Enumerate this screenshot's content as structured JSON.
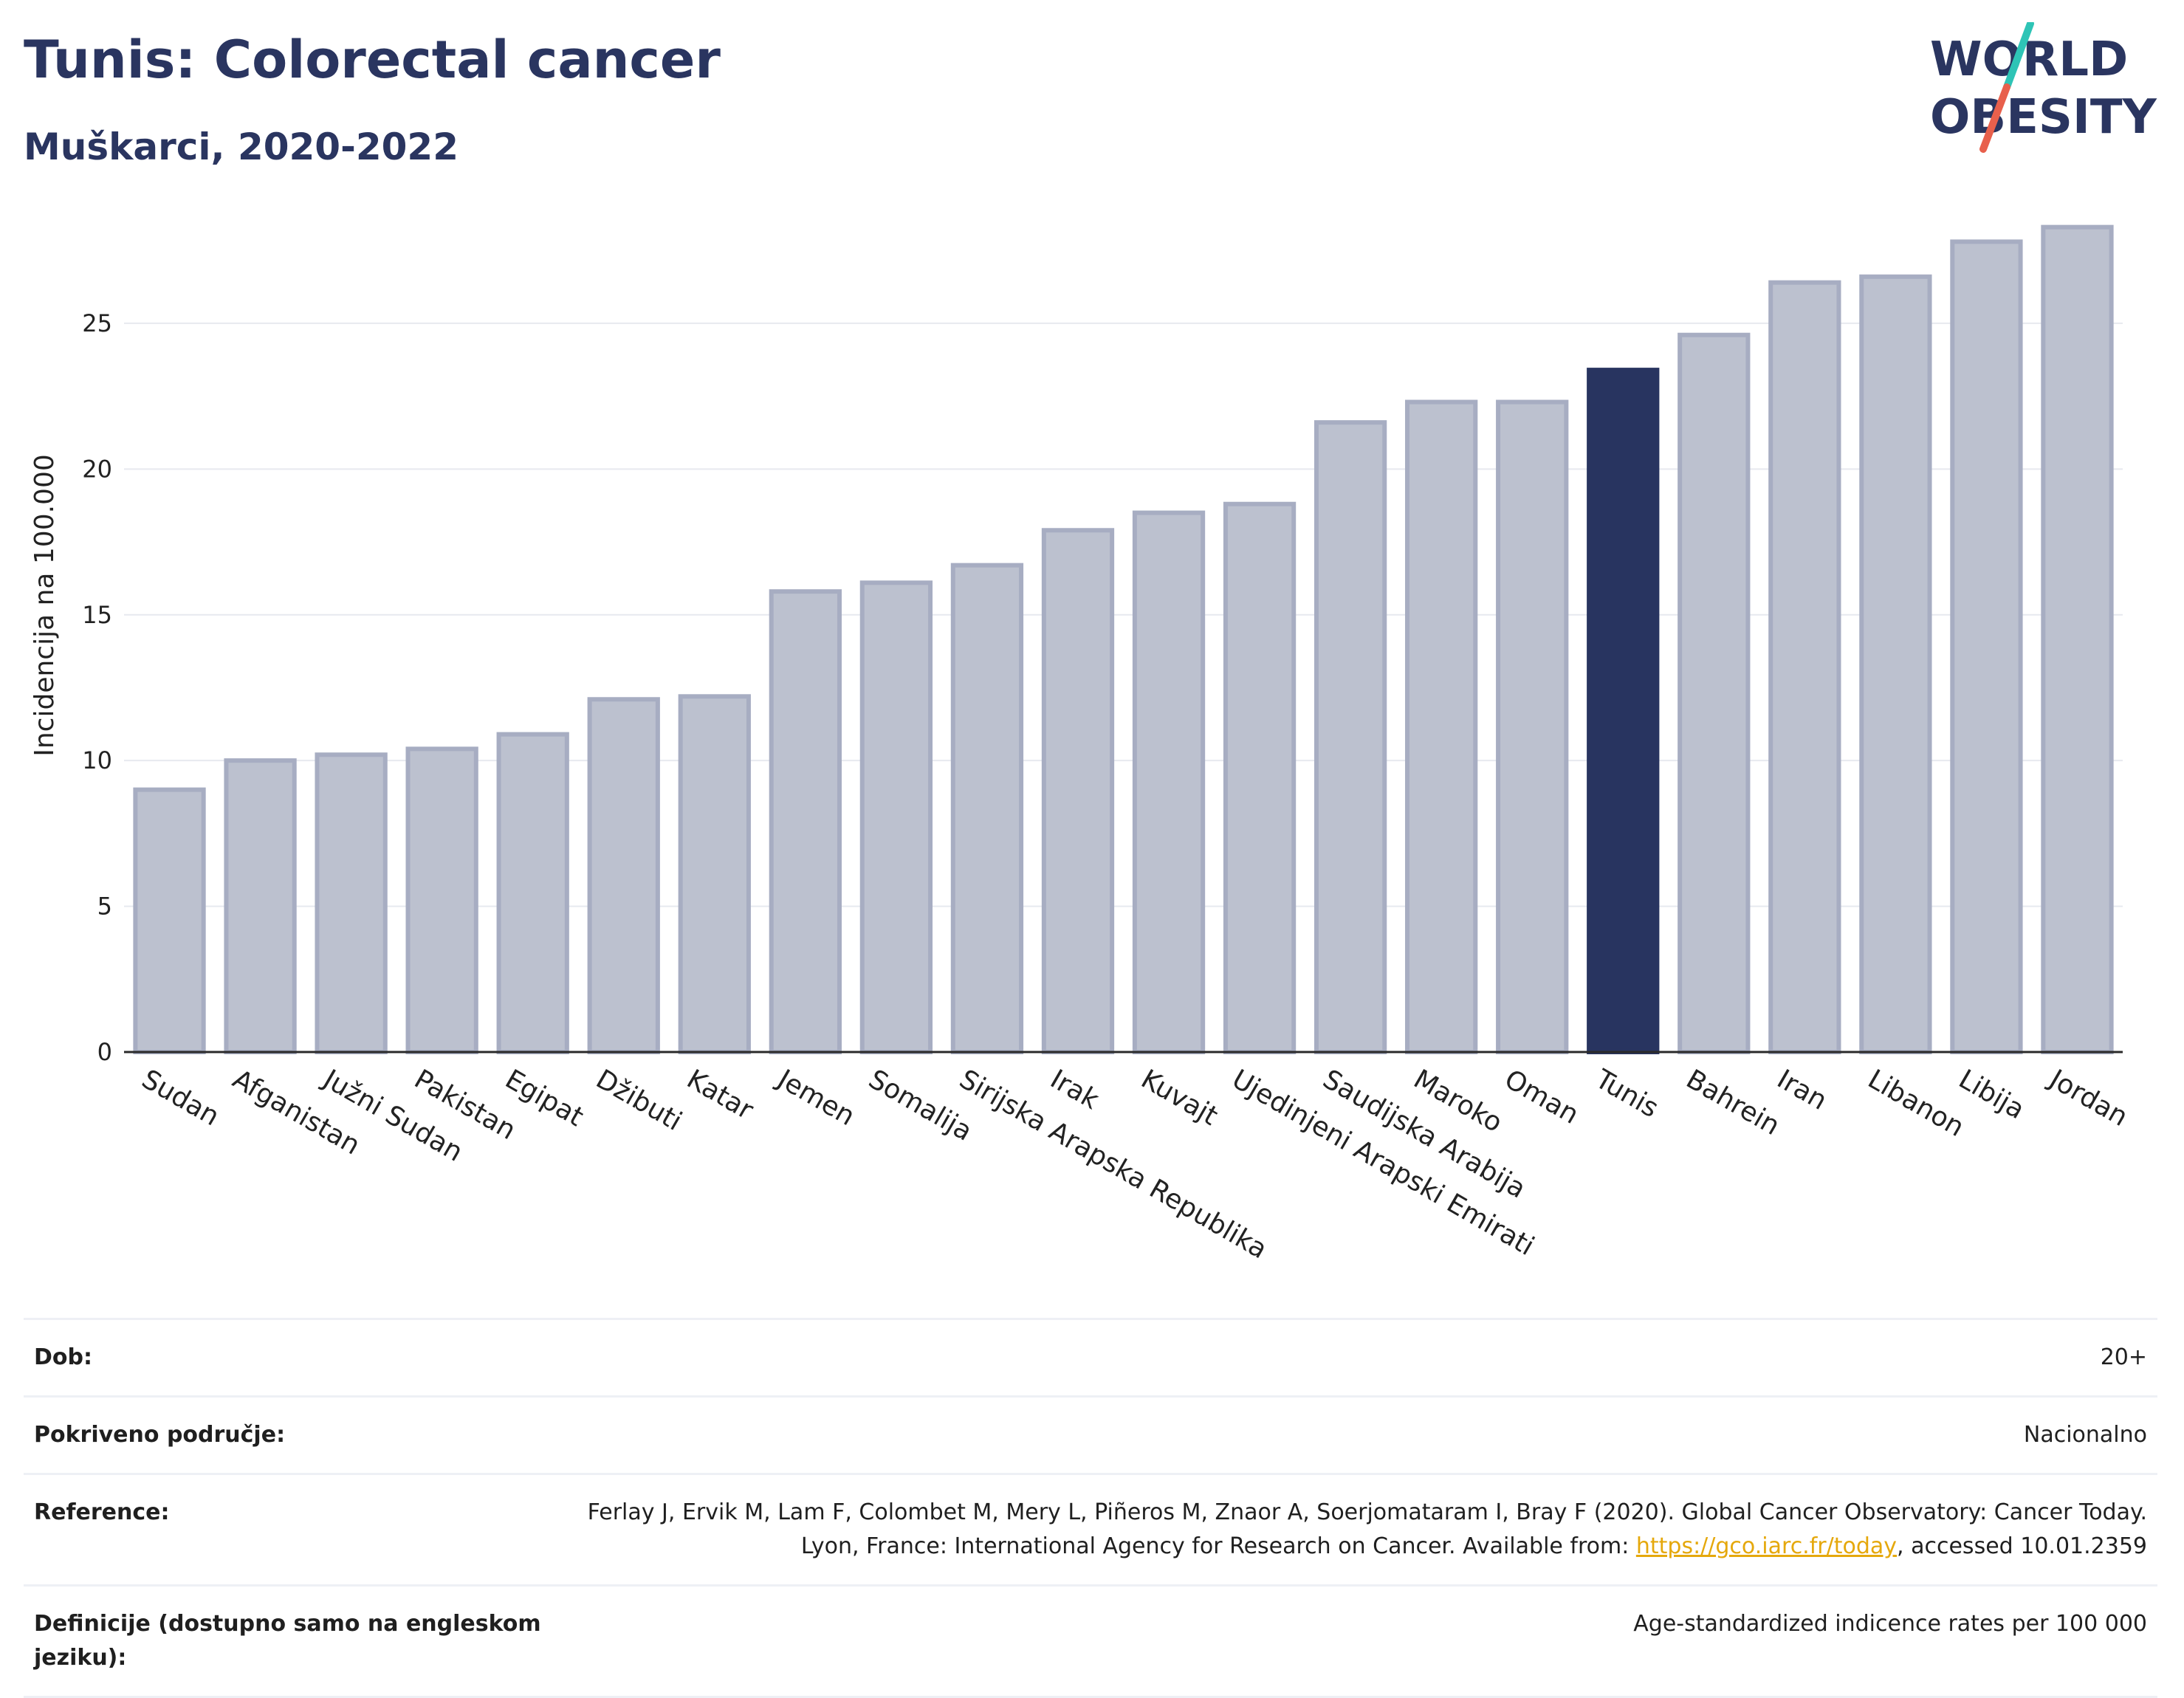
{
  "header": {
    "title": "Tunis: Colorectal cancer",
    "subtitle": "Muškarci, 2020-2022"
  },
  "logo": {
    "line1": "WORLD",
    "line2": "OBESITY",
    "colors": {
      "text": "#2a3560",
      "slash_top": "#2ec4b6",
      "slash_bottom": "#e8604c"
    }
  },
  "colors": {
    "bar": "#bcc1cf",
    "bar_border": "#a7adc2",
    "highlight": "#283460",
    "grid": "#e7e9ef",
    "axis": "#2a2a2a"
  },
  "chart_data": {
    "type": "bar",
    "ylabel": "Incidencija na 100.000",
    "ylim": [
      0,
      29
    ],
    "yticks": [
      0,
      5,
      10,
      15,
      20,
      25
    ],
    "grid": true,
    "highlight": "Tunis",
    "categories": [
      "Sudan",
      "Afganistan",
      "Južni Sudan",
      "Pakistan",
      "Egipat",
      "Džibuti",
      "Katar",
      "Jemen",
      "Somalija",
      "Sirijska Arapska Republika",
      "Irak",
      "Kuvajt",
      "Ujedinjeni Arapski Emirati",
      "Saudijska Arabija",
      "Maroko",
      "Oman",
      "Tunis",
      "Bahrein",
      "Iran",
      "Libanon",
      "Libija",
      "Jordan"
    ],
    "values": [
      9.0,
      10.0,
      10.2,
      10.4,
      10.9,
      12.1,
      12.2,
      15.8,
      16.1,
      16.7,
      17.9,
      18.5,
      18.8,
      21.6,
      22.3,
      22.3,
      23.4,
      24.6,
      26.4,
      26.6,
      27.8,
      28.3
    ]
  },
  "info": {
    "rows": [
      {
        "key": "Dob:",
        "value": "20+"
      },
      {
        "key": "Pokriveno područje:",
        "value": "Nacionalno"
      },
      {
        "key": "Reference:",
        "value_pre": "Ferlay J, Ervik M, Lam F, Colombet M, Mery L, Piñeros M, Znaor A, Soerjomataram I, Bray F (2020). Global Cancer Observatory: Cancer Today. Lyon, France: International Agency for Research on Cancer. Available from: ",
        "link": "https://gco.iarc.fr/today",
        "value_post": ", accessed 10.01.2359"
      },
      {
        "key": "Definicije (dostupno samo na engleskom jeziku):",
        "value": "Age-standardized indicence rates per 100 000"
      }
    ]
  }
}
